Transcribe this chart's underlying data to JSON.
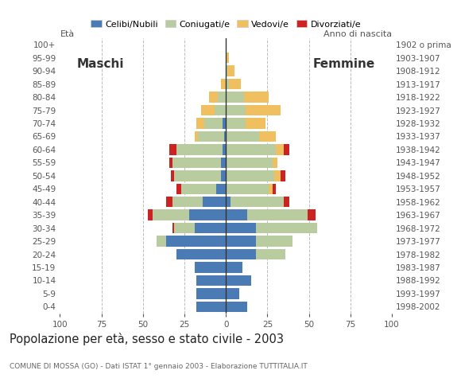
{
  "age_groups": [
    "0-4",
    "5-9",
    "10-14",
    "15-19",
    "20-24",
    "25-29",
    "30-34",
    "35-39",
    "40-44",
    "45-49",
    "50-54",
    "55-59",
    "60-64",
    "65-69",
    "70-74",
    "75-79",
    "80-84",
    "85-89",
    "90-94",
    "95-99",
    "100+"
  ],
  "birth_years": [
    "1998-2002",
    "1993-1997",
    "1988-1992",
    "1983-1987",
    "1978-1982",
    "1973-1977",
    "1968-1972",
    "1963-1967",
    "1958-1962",
    "1953-1957",
    "1948-1952",
    "1943-1947",
    "1938-1942",
    "1933-1937",
    "1928-1932",
    "1923-1927",
    "1918-1922",
    "1913-1917",
    "1908-1912",
    "1903-1907",
    "1902 o prima"
  ],
  "males": {
    "celibi": [
      18,
      18,
      18,
      19,
      30,
      36,
      19,
      22,
      14,
      6,
      3,
      3,
      2,
      1,
      2,
      0,
      0,
      0,
      0,
      0,
      0
    ],
    "coniugati": [
      0,
      0,
      0,
      0,
      0,
      6,
      12,
      22,
      18,
      21,
      28,
      29,
      28,
      16,
      11,
      7,
      5,
      0,
      0,
      0,
      0
    ],
    "vedovi": [
      0,
      0,
      0,
      0,
      0,
      0,
      0,
      0,
      0,
      0,
      0,
      0,
      0,
      2,
      5,
      8,
      5,
      3,
      0,
      0,
      0
    ],
    "divorziati": [
      0,
      0,
      0,
      0,
      0,
      0,
      1,
      3,
      4,
      3,
      2,
      2,
      4,
      0,
      0,
      0,
      0,
      0,
      0,
      0,
      0
    ]
  },
  "females": {
    "nubili": [
      13,
      8,
      15,
      10,
      18,
      18,
      18,
      13,
      3,
      0,
      0,
      0,
      0,
      0,
      0,
      0,
      0,
      0,
      0,
      0,
      0
    ],
    "coniugate": [
      0,
      0,
      0,
      0,
      18,
      22,
      37,
      36,
      32,
      26,
      29,
      28,
      30,
      20,
      12,
      12,
      11,
      2,
      1,
      0,
      0
    ],
    "vedove": [
      0,
      0,
      0,
      0,
      0,
      0,
      0,
      0,
      0,
      2,
      4,
      3,
      5,
      10,
      12,
      21,
      15,
      7,
      4,
      2,
      0
    ],
    "divorziate": [
      0,
      0,
      0,
      0,
      0,
      0,
      0,
      5,
      3,
      2,
      3,
      0,
      3,
      0,
      0,
      0,
      0,
      0,
      0,
      0,
      0
    ]
  },
  "colors": {
    "celibi": "#4a7bb5",
    "coniugati": "#b8cca0",
    "vedovi": "#f0c060",
    "divorziati": "#cc2222"
  },
  "title": "Popolazione per età, sesso e stato civile - 2003",
  "subtitle": "COMUNE DI MOSSA (GO) - Dati ISTAT 1° gennaio 2003 - Elaborazione TUTTITALIA.IT",
  "label_eta": "Età",
  "label_anno": "Anno di nascita",
  "label_maschi": "Maschi",
  "label_femmine": "Femmine",
  "legend_labels": [
    "Celibi/Nubili",
    "Coniugati/e",
    "Vedovi/e",
    "Divorziati/e"
  ],
  "xlim": 100,
  "background_color": "#ffffff",
  "grid_color": "#bbbbbb"
}
